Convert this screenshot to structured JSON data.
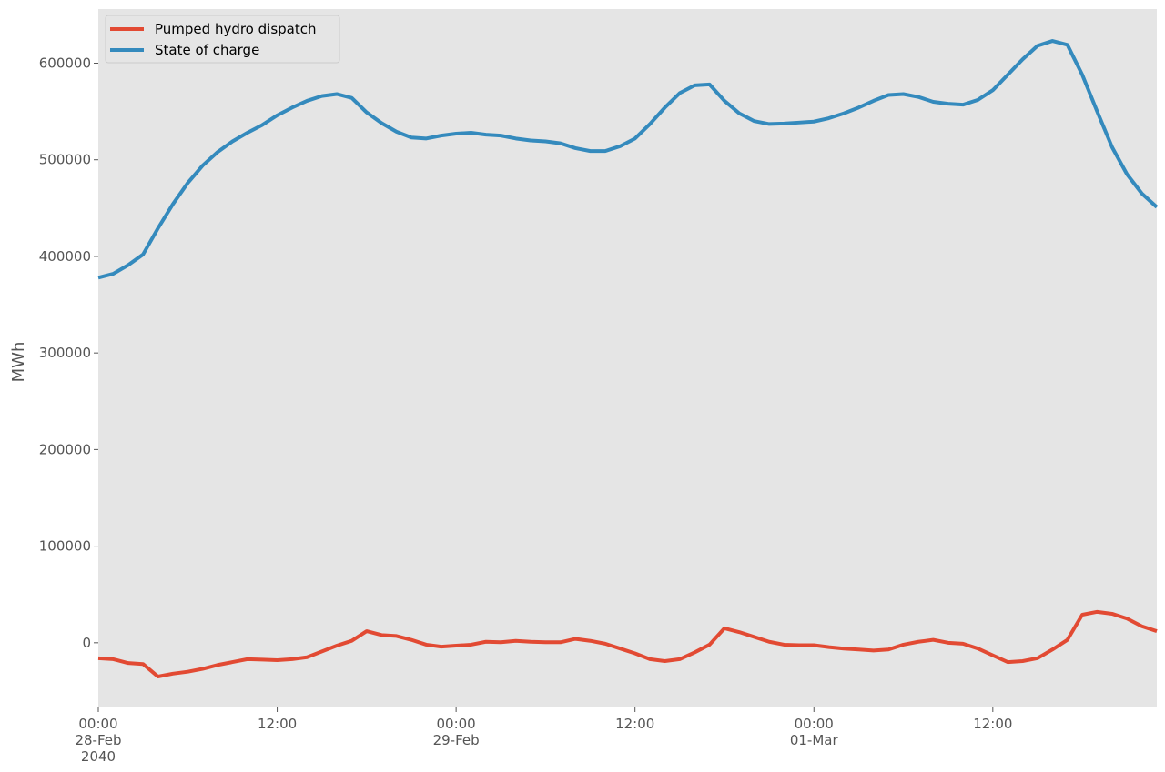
{
  "chart_data": {
    "type": "line",
    "title": "",
    "xlabel": "",
    "ylabel": "MWh",
    "ylim": [
      -67000,
      656000
    ],
    "xlim": [
      "2040-02-28 00:00",
      "2040-03-01 23:00"
    ],
    "grid": false,
    "legend_position": "top-left",
    "y_ticks": [
      "0",
      "100000",
      "200000",
      "300000",
      "400000",
      "500000",
      "600000"
    ],
    "x_ticks": [
      {
        "at": "2040-02-28 00:00",
        "lines": [
          "00:00",
          "28-Feb",
          "2040"
        ]
      },
      {
        "at": "2040-02-28 12:00",
        "lines": [
          "12:00"
        ]
      },
      {
        "at": "2040-02-29 00:00",
        "lines": [
          "00:00",
          "29-Feb"
        ]
      },
      {
        "at": "2040-02-29 12:00",
        "lines": [
          "12:00"
        ]
      },
      {
        "at": "2040-03-01 00:00",
        "lines": [
          "00:00",
          "01-Mar"
        ]
      },
      {
        "at": "2040-03-01 12:00",
        "lines": [
          "12:00"
        ]
      }
    ],
    "x_start": "2040-02-28 00:00",
    "x_step": "1h",
    "series": [
      {
        "name": "Pumped hydro dispatch",
        "color": "#E24A33",
        "values": [
          -16000,
          -17000,
          -21000,
          -22000,
          -35000,
          -32000,
          -30000,
          -27000,
          -23000,
          -20000,
          -17000,
          -17500,
          -18000,
          -17000,
          -15000,
          -9000,
          -3000,
          2000,
          12000,
          8000,
          7000,
          3000,
          -2000,
          -4000,
          -3000,
          -2000,
          1000,
          500,
          2000,
          1000,
          500,
          500,
          4000,
          2000,
          -1000,
          -6000,
          -11000,
          -17000,
          -19000,
          -17000,
          -10000,
          -2000,
          15000,
          11000,
          6000,
          1000,
          -2000,
          -2500,
          -2500,
          -4500,
          -6000,
          -7000,
          -8000,
          -7000,
          -2000,
          1000,
          3000,
          0,
          -1000,
          -6000,
          -13000,
          -20000,
          -19000,
          -16000,
          -7000,
          3000,
          29000,
          32000,
          30000,
          25000,
          17000,
          12000
        ]
      },
      {
        "name": "State of charge",
        "color": "#348ABD",
        "values": [
          378000,
          382000,
          391000,
          402000,
          429000,
          454000,
          476000,
          494000,
          508000,
          519000,
          528000,
          536000,
          546000,
          554000,
          561000,
          566000,
          568000,
          564000,
          549000,
          538000,
          529000,
          523000,
          522000,
          525000,
          527000,
          528000,
          526000,
          525000,
          522000,
          520000,
          519000,
          517000,
          512000,
          509000,
          509000,
          514000,
          522000,
          537000,
          554000,
          569000,
          577000,
          578000,
          561000,
          548000,
          540000,
          537000,
          537500,
          538500,
          539500,
          543000,
          548000,
          554000,
          561000,
          567000,
          568000,
          565000,
          560000,
          558000,
          557000,
          562000,
          572000,
          588000,
          604000,
          618000,
          623000,
          619000,
          588000,
          550000,
          513000,
          485000,
          465000,
          451000
        ]
      }
    ]
  }
}
